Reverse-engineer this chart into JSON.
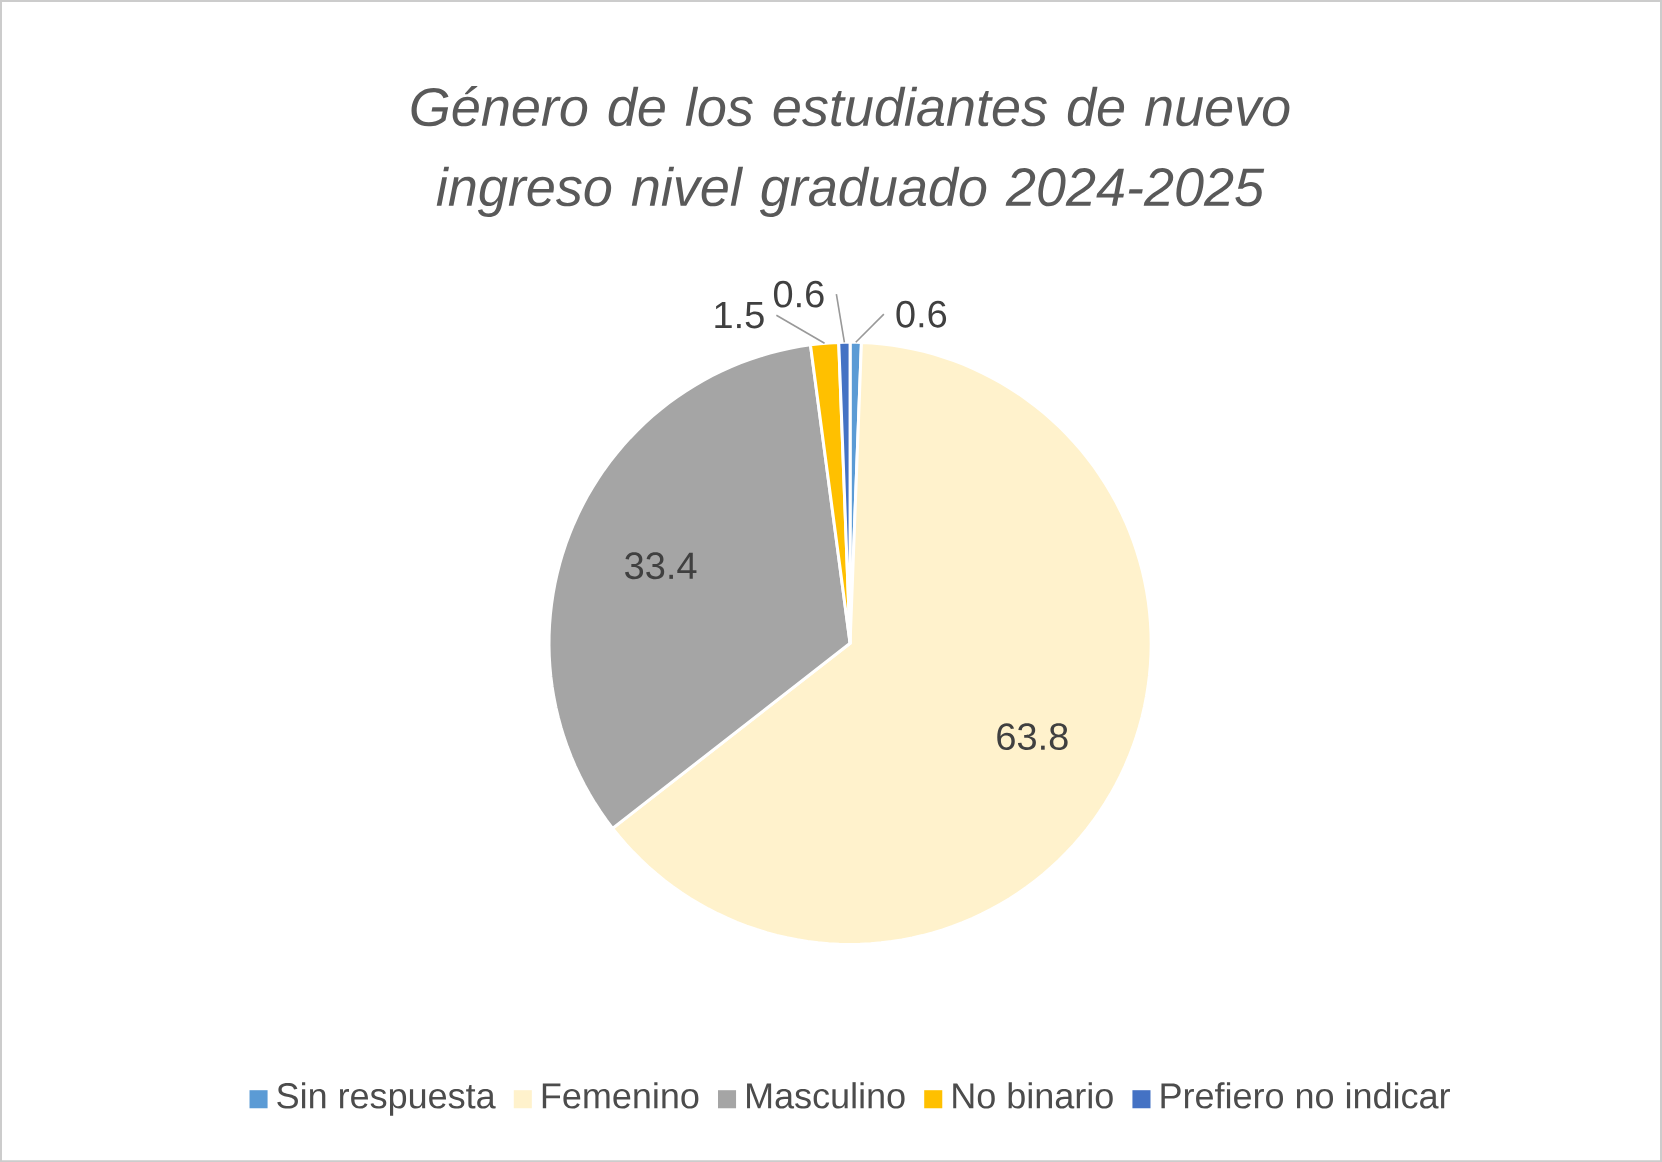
{
  "chart_data": {
    "type": "pie",
    "title": "Género de los estudiantes de nuevo ingreso nivel graduado 2024-2025",
    "categories": [
      "Sin respuesta",
      "Femenino",
      "Masculino",
      "No binario",
      "Prefiero no indicar"
    ],
    "values": [
      0.6,
      63.8,
      33.4,
      1.5,
      0.6
    ],
    "colors": [
      "#5b9bd5",
      "#fff2cc",
      "#a5a5a5",
      "#ffc000",
      "#4472c4"
    ],
    "data_labels": true,
    "legend": "bottom"
  }
}
